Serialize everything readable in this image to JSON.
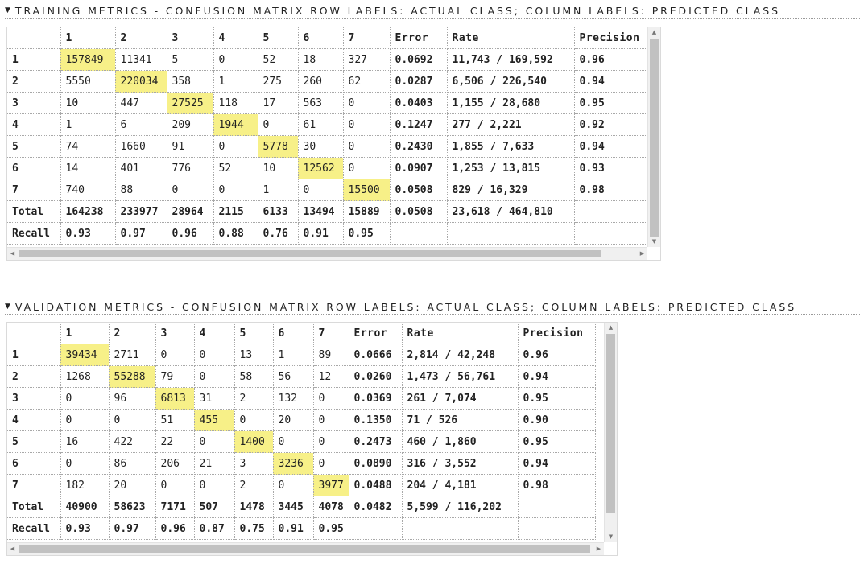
{
  "training": {
    "title": "TRAINING METRICS - CONFUSION MATRIX ROW LABELS: ACTUAL CLASS; COLUMN LABELS: PREDICTED CLASS",
    "headers": [
      "",
      "1",
      "2",
      "3",
      "4",
      "5",
      "6",
      "7",
      "Error",
      "Rate",
      "Precision"
    ],
    "rows": [
      [
        "1",
        "157849",
        "11341",
        "5",
        "0",
        "52",
        "18",
        "327",
        "0.0692",
        "11,743 / 169,592",
        "0.96"
      ],
      [
        "2",
        "5550",
        "220034",
        "358",
        "1",
        "275",
        "260",
        "62",
        "0.0287",
        "6,506 / 226,540",
        "0.94"
      ],
      [
        "3",
        "10",
        "447",
        "27525",
        "118",
        "17",
        "563",
        "0",
        "0.0403",
        "1,155 / 28,680",
        "0.95"
      ],
      [
        "4",
        "1",
        "6",
        "209",
        "1944",
        "0",
        "61",
        "0",
        "0.1247",
        "277 / 2,221",
        "0.92"
      ],
      [
        "5",
        "74",
        "1660",
        "91",
        "0",
        "5778",
        "30",
        "0",
        "0.2430",
        "1,855 / 7,633",
        "0.94"
      ],
      [
        "6",
        "14",
        "401",
        "776",
        "52",
        "10",
        "12562",
        "0",
        "0.0907",
        "1,253 / 13,815",
        "0.93"
      ],
      [
        "7",
        "740",
        "88",
        "0",
        "0",
        "1",
        "0",
        "15500",
        "0.0508",
        "829 / 16,329",
        "0.98"
      ]
    ],
    "total": [
      "Total",
      "164238",
      "233977",
      "28964",
      "2115",
      "6133",
      "13494",
      "15889",
      "0.0508",
      "23,618 / 464,810",
      ""
    ],
    "recall": [
      "Recall",
      "0.93",
      "0.97",
      "0.96",
      "0.88",
      "0.76",
      "0.91",
      "0.95",
      "",
      "",
      ""
    ]
  },
  "validation": {
    "title": "VALIDATION METRICS - CONFUSION MATRIX ROW LABELS: ACTUAL CLASS; COLUMN LABELS: PREDICTED CLASS",
    "headers": [
      "",
      "1",
      "2",
      "3",
      "4",
      "5",
      "6",
      "7",
      "Error",
      "Rate",
      "Precision"
    ],
    "rows": [
      [
        "1",
        "39434",
        "2711",
        "0",
        "0",
        "13",
        "1",
        "89",
        "0.0666",
        "2,814 / 42,248",
        "0.96"
      ],
      [
        "2",
        "1268",
        "55288",
        "79",
        "0",
        "58",
        "56",
        "12",
        "0.0260",
        "1,473 / 56,761",
        "0.94"
      ],
      [
        "3",
        "0",
        "96",
        "6813",
        "31",
        "2",
        "132",
        "0",
        "0.0369",
        "261 / 7,074",
        "0.95"
      ],
      [
        "4",
        "0",
        "0",
        "51",
        "455",
        "0",
        "20",
        "0",
        "0.1350",
        "71 / 526",
        "0.90"
      ],
      [
        "5",
        "16",
        "422",
        "22",
        "0",
        "1400",
        "0",
        "0",
        "0.2473",
        "460 / 1,860",
        "0.95"
      ],
      [
        "6",
        "0",
        "86",
        "206",
        "21",
        "3",
        "3236",
        "0",
        "0.0890",
        "316 / 3,552",
        "0.94"
      ],
      [
        "7",
        "182",
        "20",
        "0",
        "0",
        "2",
        "0",
        "3977",
        "0.0488",
        "204 / 4,181",
        "0.98"
      ]
    ],
    "total": [
      "Total",
      "40900",
      "58623",
      "7171",
      "507",
      "1478",
      "3445",
      "4078",
      "0.0482",
      "5,599 / 116,202",
      ""
    ],
    "recall": [
      "Recall",
      "0.93",
      "0.97",
      "0.96",
      "0.87",
      "0.75",
      "0.91",
      "0.95",
      "",
      "",
      ""
    ]
  },
  "style": {
    "diagonal_highlight": "#f7f088",
    "grid_line": "#a8a8a8"
  }
}
